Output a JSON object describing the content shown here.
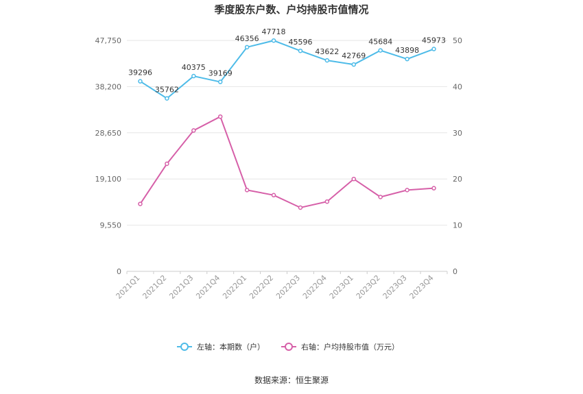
{
  "chart_data": {
    "type": "line",
    "title": "季度股东户数、户均持股市值情况",
    "categories": [
      "2021Q1",
      "2021Q2",
      "2021Q3",
      "2021Q4",
      "2022Q1",
      "2022Q2",
      "2022Q3",
      "2022Q4",
      "2023Q1",
      "2023Q2",
      "2023Q3",
      "2023Q4"
    ],
    "left_axis": {
      "ticks": [
        "0",
        "9,550",
        "19,100",
        "28,650",
        "38,200",
        "47,750"
      ],
      "ylim": [
        0,
        47750
      ]
    },
    "right_axis": {
      "ticks": [
        "0",
        "10",
        "20",
        "30",
        "40",
        "50"
      ],
      "ylim": [
        0,
        50
      ]
    },
    "series": [
      {
        "name": "左轴：本期数（户）",
        "axis": "left",
        "color": "#4dbbe8",
        "values": [
          39296,
          35762,
          40375,
          39169,
          46356,
          47718,
          45596,
          43622,
          42769,
          45684,
          43898,
          45973
        ],
        "labels": [
          "39296",
          "35762",
          "40375",
          "39169",
          "46356",
          "47718",
          "45596",
          "43622",
          "42769",
          "45684",
          "43898",
          "45973"
        ]
      },
      {
        "name": "右轴：户均持股市值（万元）",
        "axis": "right",
        "color": "#d65fa8",
        "values": [
          14.6,
          23.3,
          30.5,
          33.5,
          17.6,
          16.5,
          13.8,
          15.1,
          20.0,
          16.1,
          17.6,
          18.0
        ]
      }
    ],
    "grid": true,
    "legend_position": "bottom"
  },
  "source_label": "数据来源：恒生聚源"
}
